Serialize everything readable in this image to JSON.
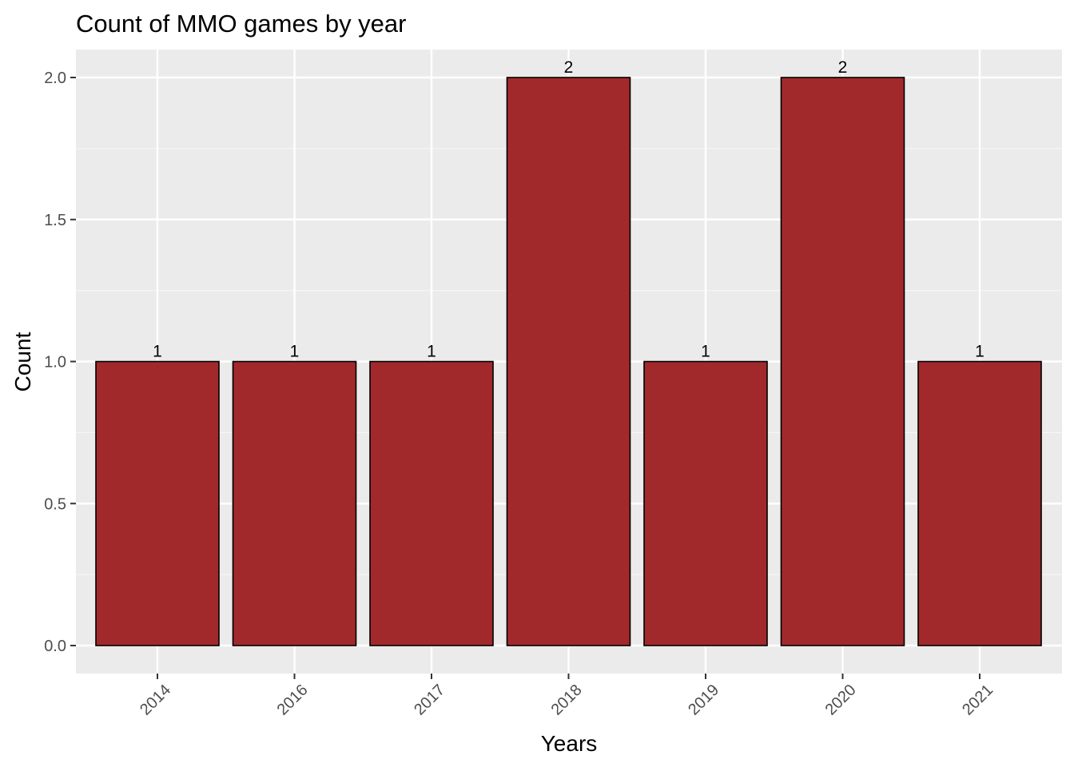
{
  "chart_data": {
    "type": "bar",
    "title": "Count of MMO games by year",
    "xlabel": "Years",
    "ylabel": "Count",
    "categories": [
      "2014",
      "2016",
      "2017",
      "2018",
      "2019",
      "2020",
      "2021"
    ],
    "values": [
      1,
      1,
      1,
      2,
      1,
      2,
      1
    ],
    "data_labels": [
      "1",
      "1",
      "1",
      "2",
      "1",
      "2",
      "1"
    ],
    "ylim": [
      0,
      2
    ],
    "yticks": [
      0.0,
      0.5,
      1.0,
      1.5,
      2.0
    ],
    "ytick_labels": [
      "0.0",
      "0.5",
      "1.0",
      "1.5",
      "2.0"
    ],
    "grid": true,
    "legend": "none",
    "colors": {
      "bar_fill": "#a2292b",
      "bar_stroke": "#000000",
      "panel_background": "#ebebeb",
      "grid_major": "#ffffff",
      "grid_minor": "#f5f5f5",
      "tick_text": "#4d4d4d",
      "title_text": "#000000"
    }
  }
}
